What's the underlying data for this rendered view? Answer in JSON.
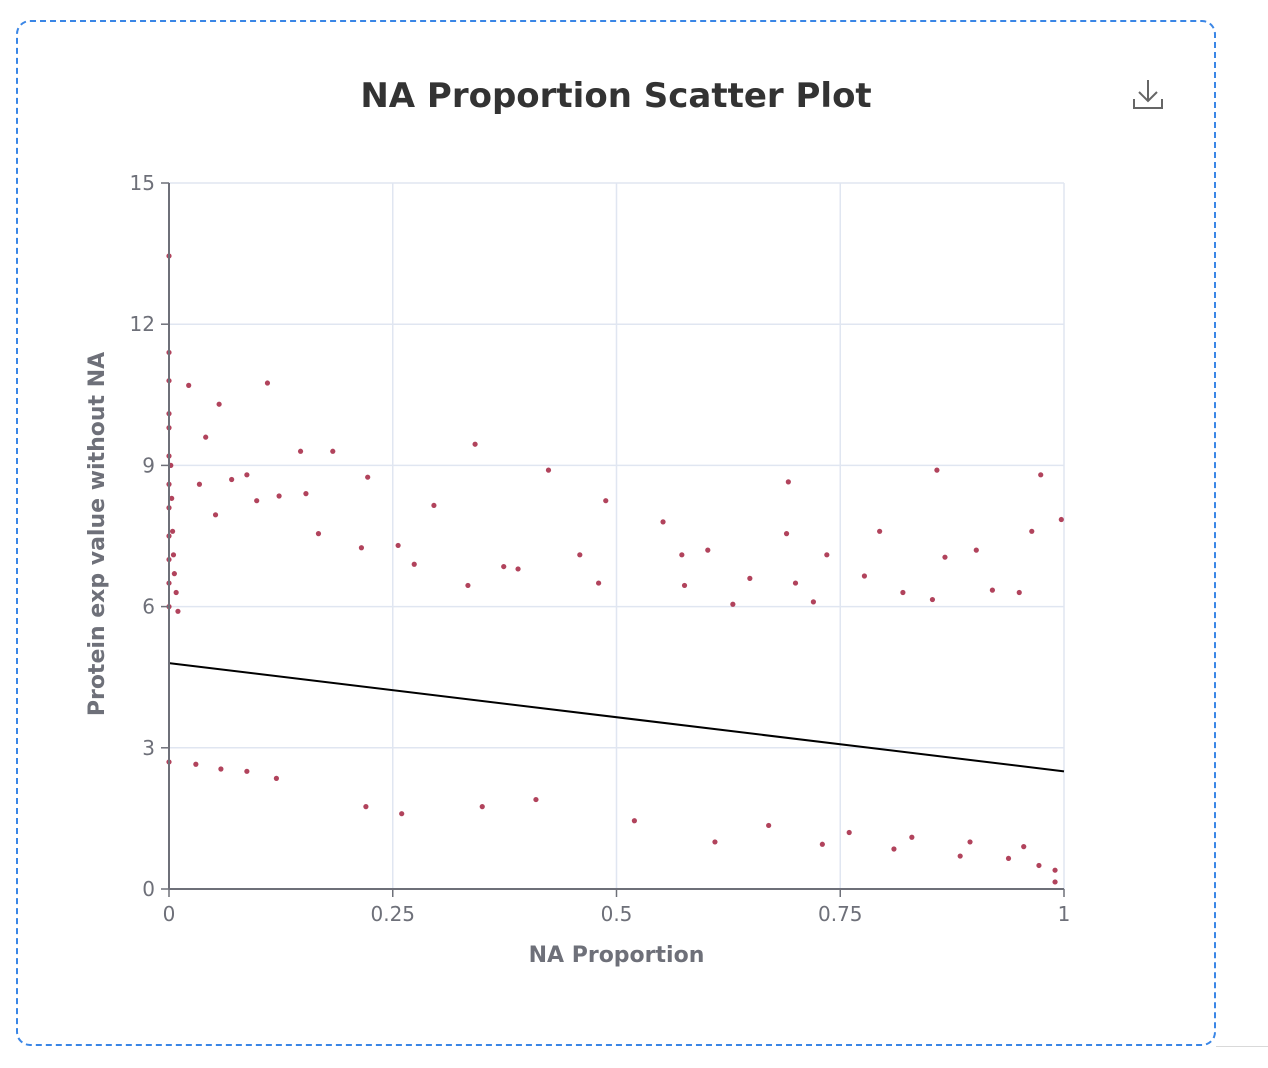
{
  "chart_data": {
    "type": "scatter",
    "title": "NA Proportion Scatter Plot",
    "xlabel": "NA Proportion",
    "ylabel": "Protein exp value without NA",
    "xlim": [
      0,
      1
    ],
    "ylim": [
      0,
      15
    ],
    "x_ticks": [
      "0",
      "0.25",
      "0.5",
      "0.75",
      "1"
    ],
    "y_ticks": [
      "0",
      "3",
      "6",
      "9",
      "12",
      "15"
    ],
    "grid": true,
    "point_color": "#a3223f",
    "trendline": {
      "color": "#000000",
      "x": [
        0,
        1
      ],
      "y": [
        4.8,
        2.5
      ]
    },
    "series": [
      {
        "values": [
          [
            0,
            13.45
          ],
          [
            0,
            11.4
          ],
          [
            0,
            10.8
          ],
          [
            0,
            10.1
          ],
          [
            0,
            9.8
          ],
          [
            0,
            9.2
          ],
          [
            0,
            8.6
          ],
          [
            0,
            8.1
          ],
          [
            0,
            7.5
          ],
          [
            0,
            7.0
          ],
          [
            0,
            6.5
          ],
          [
            0,
            6.0
          ],
          [
            0,
            2.7
          ],
          [
            0.002,
            9.0
          ],
          [
            0.003,
            8.3
          ],
          [
            0.004,
            7.6
          ],
          [
            0.005,
            7.1
          ],
          [
            0.006,
            6.7
          ],
          [
            0.008,
            6.3
          ],
          [
            0.01,
            5.9
          ],
          [
            0.022,
            10.7
          ],
          [
            0.041,
            9.6
          ],
          [
            0.056,
            10.3
          ],
          [
            0.11,
            10.75
          ],
          [
            0.147,
            9.3
          ],
          [
            0.183,
            9.3
          ],
          [
            0.034,
            8.6
          ],
          [
            0.07,
            8.7
          ],
          [
            0.087,
            8.8
          ],
          [
            0.153,
            8.4
          ],
          [
            0.222,
            8.75
          ],
          [
            0.123,
            8.35
          ],
          [
            0.098,
            8.25
          ],
          [
            0.052,
            7.95
          ],
          [
            0.296,
            8.15
          ],
          [
            0.342,
            9.45
          ],
          [
            0.424,
            8.9
          ],
          [
            0.488,
            8.25
          ],
          [
            0.552,
            7.8
          ],
          [
            0.692,
            8.65
          ],
          [
            0.858,
            8.9
          ],
          [
            0.974,
            8.8
          ],
          [
            0.997,
            7.85
          ],
          [
            0.167,
            7.55
          ],
          [
            0.215,
            7.25
          ],
          [
            0.256,
            7.3
          ],
          [
            0.374,
            6.85
          ],
          [
            0.39,
            6.8
          ],
          [
            0.459,
            7.1
          ],
          [
            0.573,
            7.1
          ],
          [
            0.602,
            7.2
          ],
          [
            0.69,
            7.55
          ],
          [
            0.735,
            7.1
          ],
          [
            0.794,
            7.6
          ],
          [
            0.867,
            7.05
          ],
          [
            0.902,
            7.2
          ],
          [
            0.964,
            7.6
          ],
          [
            0.274,
            6.9
          ],
          [
            0.334,
            6.45
          ],
          [
            0.48,
            6.5
          ],
          [
            0.576,
            6.45
          ],
          [
            0.649,
            6.6
          ],
          [
            0.7,
            6.5
          ],
          [
            0.777,
            6.65
          ],
          [
            0.82,
            6.3
          ],
          [
            0.853,
            6.15
          ],
          [
            0.95,
            6.3
          ],
          [
            0.92,
            6.35
          ],
          [
            0.72,
            6.1
          ],
          [
            0.63,
            6.05
          ],
          [
            0.61,
            1.0
          ],
          [
            0.73,
            0.95
          ],
          [
            0.81,
            0.85
          ],
          [
            0.884,
            0.7
          ],
          [
            0.938,
            0.65
          ],
          [
            0.972,
            0.5
          ],
          [
            0.99,
            0.15
          ],
          [
            0.99,
            0.4
          ],
          [
            0.52,
            1.45
          ],
          [
            0.67,
            1.35
          ],
          [
            0.76,
            1.2
          ],
          [
            0.83,
            1.1
          ],
          [
            0.895,
            1.0
          ],
          [
            0.955,
            0.9
          ],
          [
            0.03,
            2.65
          ],
          [
            0.058,
            2.55
          ],
          [
            0.087,
            2.5
          ],
          [
            0.12,
            2.35
          ],
          [
            0.22,
            1.75
          ],
          [
            0.26,
            1.6
          ],
          [
            0.35,
            1.75
          ],
          [
            0.41,
            1.9
          ]
        ]
      }
    ]
  },
  "toolbar": {
    "download_icon": "download-icon"
  }
}
